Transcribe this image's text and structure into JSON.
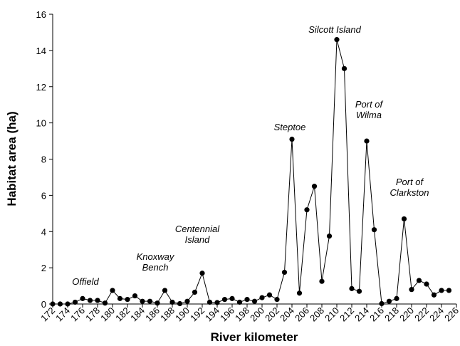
{
  "chart_data": {
    "type": "line",
    "x_label": "River kilometer",
    "y_label": "Habitat area (ha)",
    "x": [
      172,
      173,
      174,
      175,
      176,
      177,
      178,
      179,
      180,
      181,
      182,
      183,
      184,
      185,
      186,
      187,
      188,
      189,
      190,
      191,
      192,
      193,
      194,
      195,
      196,
      197,
      198,
      199,
      200,
      201,
      202,
      203,
      204,
      205,
      206,
      207,
      208,
      209,
      210,
      211,
      212,
      213,
      214,
      215,
      216,
      217,
      218,
      219,
      220,
      221,
      222,
      223,
      224,
      225
    ],
    "series": [
      {
        "color": "#000000",
        "values": [
          0,
          0,
          0,
          0.1,
          0.3,
          0.2,
          0.2,
          0.05,
          0.75,
          0.3,
          0.25,
          0.45,
          0.15,
          0.15,
          0.05,
          0.75,
          0.1,
          0.02,
          0.15,
          0.65,
          1.7,
          0.1,
          0.08,
          0.25,
          0.3,
          0.1,
          0.25,
          0.15,
          0.35,
          0.5,
          0.25,
          1.75,
          9.1,
          0.6,
          5.2,
          6.5,
          1.25,
          3.75,
          14.6,
          13.0,
          0.85,
          0.7,
          9.0,
          4.1,
          0.02,
          0.15,
          0.3,
          4.7,
          0.8,
          1.3,
          1.1,
          0.5,
          0.75,
          0.75
        ]
      }
    ],
    "xlim": [
      172,
      226
    ],
    "ylim": [
      0,
      16
    ],
    "xticks": [
      172,
      174,
      176,
      178,
      180,
      182,
      184,
      186,
      188,
      190,
      192,
      194,
      196,
      198,
      200,
      202,
      204,
      206,
      208,
      210,
      212,
      214,
      216,
      218,
      220,
      222,
      224,
      226
    ],
    "yticks": [
      0,
      2,
      4,
      6,
      8,
      10,
      12,
      14,
      16
    ],
    "annotations": [
      {
        "lines": [
          "Offield"
        ]
      },
      {
        "lines": [
          "Knoxway",
          "Bench"
        ]
      },
      {
        "lines": [
          "Centennial",
          "Island"
        ]
      },
      {
        "lines": [
          "Steptoe"
        ]
      },
      {
        "lines": [
          "Silcott Island"
        ]
      },
      {
        "lines": [
          "Port of",
          "Wilma"
        ]
      },
      {
        "lines": [
          "Port of",
          "Clarkston"
        ]
      }
    ]
  }
}
